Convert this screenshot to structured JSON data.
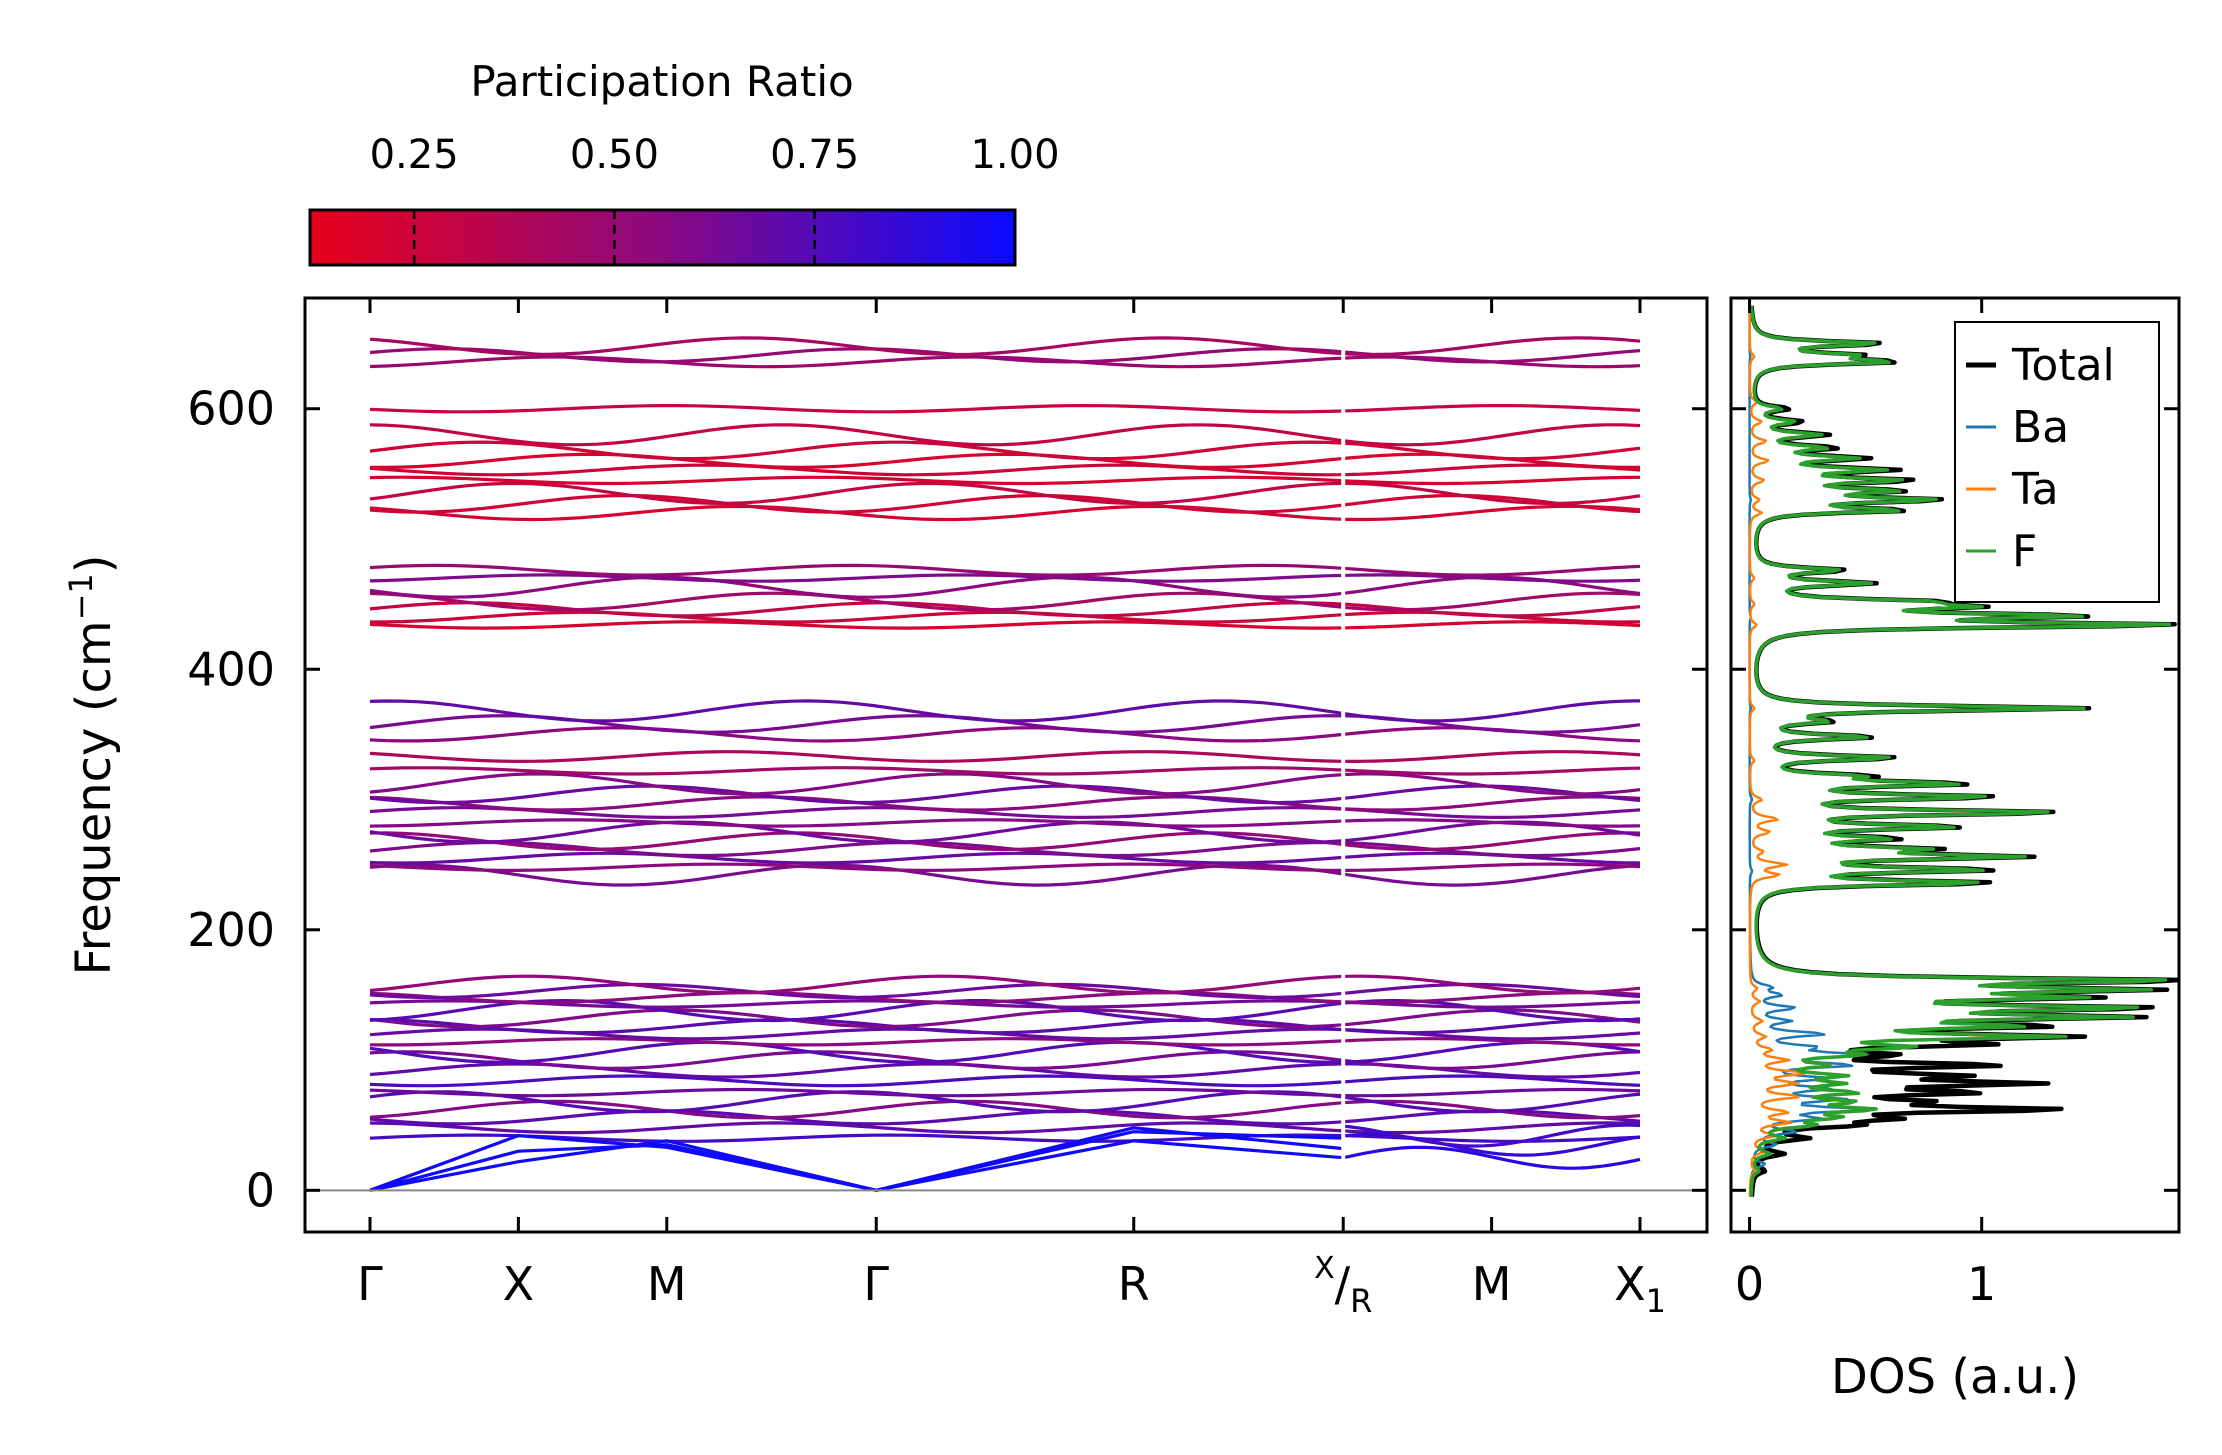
{
  "chart_data": {
    "type": "line",
    "title": "",
    "colorbar": {
      "title": "Participation Ratio",
      "ticks": [
        "0.25",
        "0.50",
        "0.75",
        "1.00"
      ],
      "tick_values": [
        0.25,
        0.5,
        0.75,
        1.0
      ],
      "range": [
        0.12,
        1.0
      ],
      "low_color": "#e8001a",
      "mid_color": "#8a0a80",
      "high_color": "#0a0aff"
    },
    "band_structure": {
      "ylabel_main": "Frequency (cm",
      "ylabel_sup": "−1",
      "ylabel_close": ")",
      "ylim": [
        -32,
        685
      ],
      "yticks": [
        0,
        200,
        400,
        600
      ],
      "ytick_labels": [
        "0",
        "200",
        "400",
        "600"
      ],
      "kpoints": [
        {
          "label": "Γ",
          "sub": "",
          "sup": "",
          "pos": 0.0
        },
        {
          "label": "X",
          "sub": "",
          "sup": "",
          "pos": 0.102
        },
        {
          "label": "M",
          "sub": "",
          "sup": "",
          "pos": 0.204
        },
        {
          "label": "Γ",
          "sub": "",
          "sup": "",
          "pos": 0.348
        },
        {
          "label": "R",
          "sub": "",
          "sup": "",
          "pos": 0.525
        },
        {
          "label": "/",
          "sub": "R",
          "sup": "X",
          "pos": 0.669
        },
        {
          "label": "M",
          "sub": "",
          "sup": "",
          "pos": 0.771
        },
        {
          "label": "X",
          "sub": "1",
          "sup": "",
          "pos": 0.873
        }
      ],
      "path_break_after": 0.669,
      "zero_line": 0,
      "acoustic_branches": [
        {
          "points": [
            [
              0.0,
              0
            ],
            [
              0.102,
              42
            ],
            [
              0.204,
              33
            ],
            [
              0.348,
              0
            ],
            [
              0.525,
              48
            ],
            [
              0.669,
              32
            ]
          ]
        },
        {
          "points": [
            [
              0.0,
              0
            ],
            [
              0.102,
              30
            ],
            [
              0.204,
              35
            ],
            [
              0.348,
              0
            ],
            [
              0.525,
              38
            ],
            [
              0.669,
              25
            ]
          ]
        },
        {
          "points": [
            [
              0.0,
              0
            ],
            [
              0.102,
              22
            ],
            [
              0.204,
              38
            ],
            [
              0.348,
              0
            ],
            [
              0.525,
              45
            ],
            [
              0.669,
              40
            ]
          ]
        }
      ],
      "optical_bands": [
        {
          "y": 40,
          "pr": 0.8
        },
        {
          "y": 48,
          "pr": 0.7
        },
        {
          "y": 56,
          "pr": 0.72
        },
        {
          "y": 62,
          "pr": 0.58
        },
        {
          "y": 68,
          "pr": 0.74
        },
        {
          "y": 75,
          "pr": 0.66
        },
        {
          "y": 84,
          "pr": 0.78
        },
        {
          "y": 92,
          "pr": 0.7
        },
        {
          "y": 100,
          "pr": 0.62
        },
        {
          "y": 106,
          "pr": 0.75
        },
        {
          "y": 114,
          "pr": 0.55
        },
        {
          "y": 120,
          "pr": 0.68
        },
        {
          "y": 126,
          "pr": 0.72
        },
        {
          "y": 132,
          "pr": 0.6
        },
        {
          "y": 138,
          "pr": 0.74
        },
        {
          "y": 143,
          "pr": 0.64
        },
        {
          "y": 148,
          "pr": 0.56
        },
        {
          "y": 153,
          "pr": 0.66
        },
        {
          "y": 158,
          "pr": 0.52
        },
        {
          "y": 242,
          "pr": 0.62
        },
        {
          "y": 248,
          "pr": 0.55
        },
        {
          "y": 255,
          "pr": 0.68
        },
        {
          "y": 262,
          "pr": 0.6
        },
        {
          "y": 268,
          "pr": 0.52
        },
        {
          "y": 275,
          "pr": 0.66
        },
        {
          "y": 282,
          "pr": 0.58
        },
        {
          "y": 290,
          "pr": 0.63
        },
        {
          "y": 297,
          "pr": 0.55
        },
        {
          "y": 304,
          "pr": 0.67
        },
        {
          "y": 312,
          "pr": 0.58
        },
        {
          "y": 322,
          "pr": 0.45
        },
        {
          "y": 333,
          "pr": 0.4
        },
        {
          "y": 350,
          "pr": 0.55
        },
        {
          "y": 358,
          "pr": 0.62
        },
        {
          "y": 368,
          "pr": 0.7
        },
        {
          "y": 434,
          "pr": 0.22
        },
        {
          "y": 440,
          "pr": 0.25
        },
        {
          "y": 446,
          "pr": 0.3
        },
        {
          "y": 452,
          "pr": 0.45
        },
        {
          "y": 463,
          "pr": 0.55
        },
        {
          "y": 470,
          "pr": 0.6
        },
        {
          "y": 476,
          "pr": 0.5
        },
        {
          "y": 520,
          "pr": 0.22
        },
        {
          "y": 527,
          "pr": 0.24
        },
        {
          "y": 535,
          "pr": 0.28
        },
        {
          "y": 545,
          "pr": 0.22
        },
        {
          "y": 553,
          "pr": 0.25
        },
        {
          "y": 560,
          "pr": 0.2
        },
        {
          "y": 568,
          "pr": 0.24
        },
        {
          "y": 580,
          "pr": 0.3
        },
        {
          "y": 600,
          "pr": 0.28
        },
        {
          "y": 636,
          "pr": 0.48
        },
        {
          "y": 641,
          "pr": 0.5
        },
        {
          "y": 648,
          "pr": 0.42
        }
      ]
    },
    "dos": {
      "xlabel": "DOS (a.u.)",
      "xlim": [
        -0.08,
        1.85
      ],
      "xticks": [
        0,
        1
      ],
      "xtick_labels": [
        "0",
        "1"
      ],
      "legend_position": "top-right",
      "series": [
        {
          "name": "Total",
          "color": "#000000",
          "line_width": 4.5,
          "peaks": [
            [
              15,
              0.05
            ],
            [
              28,
              0.12
            ],
            [
              40,
              0.2
            ],
            [
              50,
              0.35
            ],
            [
              55,
              0.45
            ],
            [
              62,
              1.22
            ],
            [
              68,
              0.55
            ],
            [
              75,
              0.8
            ],
            [
              82,
              1.05
            ],
            [
              88,
              0.7
            ],
            [
              96,
              0.95
            ],
            [
              104,
              0.45
            ],
            [
              112,
              0.8
            ],
            [
              118,
              1.18
            ],
            [
              126,
              1.05
            ],
            [
              133,
              1.38
            ],
            [
              140,
              1.5
            ],
            [
              148,
              1.15
            ],
            [
              154,
              1.43
            ],
            [
              161,
              1.76
            ],
            [
              236,
              1.0
            ],
            [
              246,
              0.97
            ],
            [
              256,
              1.06
            ],
            [
              262,
              0.62
            ],
            [
              270,
              0.52
            ],
            [
              279,
              0.82
            ],
            [
              290,
              1.27
            ],
            [
              302,
              0.98
            ],
            [
              312,
              0.85
            ],
            [
              318,
              0.4
            ],
            [
              332,
              0.6
            ],
            [
              348,
              0.5
            ],
            [
              360,
              0.28
            ],
            [
              370,
              1.43
            ],
            [
              434,
              1.75
            ],
            [
              441,
              1.25
            ],
            [
              448,
              0.72
            ],
            [
              452,
              0.6
            ],
            [
              466,
              0.48
            ],
            [
              476,
              0.38
            ],
            [
              522,
              0.62
            ],
            [
              530,
              0.74
            ],
            [
              537,
              0.55
            ],
            [
              545,
              0.62
            ],
            [
              553,
              0.55
            ],
            [
              562,
              0.44
            ],
            [
              570,
              0.32
            ],
            [
              580,
              0.3
            ],
            [
              590,
              0.2
            ],
            [
              600,
              0.15
            ],
            [
              636,
              0.58
            ],
            [
              641,
              0.4
            ],
            [
              650,
              0.55
            ]
          ]
        },
        {
          "name": "Ba",
          "color": "#1f77b4",
          "line_width": 2.5,
          "peaks": [
            [
              20,
              0.06
            ],
            [
              35,
              0.1
            ],
            [
              45,
              0.18
            ],
            [
              55,
              0.25
            ],
            [
              62,
              0.45
            ],
            [
              70,
              0.35
            ],
            [
              78,
              0.3
            ],
            [
              86,
              0.28
            ],
            [
              96,
              0.4
            ],
            [
              104,
              0.45
            ],
            [
              110,
              0.22
            ],
            [
              120,
              0.3
            ],
            [
              130,
              0.15
            ],
            [
              140,
              0.18
            ],
            [
              150,
              0.12
            ],
            [
              156,
              0.08
            ],
            [
              245,
              0.01
            ],
            [
              300,
              0.01
            ],
            [
              370,
              0.005
            ],
            [
              440,
              0.005
            ],
            [
              530,
              0.005
            ],
            [
              640,
              0.003
            ]
          ]
        },
        {
          "name": "Ta",
          "color": "#ff7f0e",
          "line_width": 2.5,
          "peaks": [
            [
              15,
              0.02
            ],
            [
              30,
              0.06
            ],
            [
              42,
              0.1
            ],
            [
              52,
              0.16
            ],
            [
              60,
              0.15
            ],
            [
              72,
              0.2
            ],
            [
              82,
              0.18
            ],
            [
              90,
              0.22
            ],
            [
              100,
              0.15
            ],
            [
              108,
              0.08
            ],
            [
              118,
              0.06
            ],
            [
              130,
              0.05
            ],
            [
              145,
              0.04
            ],
            [
              155,
              0.03
            ],
            [
              242,
              0.12
            ],
            [
              250,
              0.15
            ],
            [
              260,
              0.05
            ],
            [
              275,
              0.08
            ],
            [
              285,
              0.12
            ],
            [
              300,
              0.05
            ],
            [
              330,
              0.02
            ],
            [
              370,
              0.02
            ],
            [
              434,
              0.03
            ],
            [
              450,
              0.02
            ],
            [
              470,
              0.02
            ],
            [
              520,
              0.05
            ],
            [
              530,
              0.04
            ],
            [
              545,
              0.06
            ],
            [
              560,
              0.08
            ],
            [
              575,
              0.07
            ],
            [
              590,
              0.05
            ],
            [
              605,
              0.03
            ],
            [
              640,
              0.02
            ]
          ]
        },
        {
          "name": "F",
          "color": "#2ca02c",
          "line_width": 3.5,
          "peaks": [
            [
              15,
              0.03
            ],
            [
              28,
              0.07
            ],
            [
              40,
              0.12
            ],
            [
              50,
              0.22
            ],
            [
              56,
              0.3
            ],
            [
              62,
              0.45
            ],
            [
              68,
              0.35
            ],
            [
              75,
              0.38
            ],
            [
              82,
              0.3
            ],
            [
              88,
              0.32
            ],
            [
              96,
              0.25
            ],
            [
              104,
              0.35
            ],
            [
              110,
              0.55
            ],
            [
              118,
              1.18
            ],
            [
              126,
              0.95
            ],
            [
              133,
              1.35
            ],
            [
              140,
              1.45
            ],
            [
              148,
              1.1
            ],
            [
              154,
              1.38
            ],
            [
              161,
              1.7
            ],
            [
              236,
              0.95
            ],
            [
              246,
              0.93
            ],
            [
              256,
              1.03
            ],
            [
              262,
              0.58
            ],
            [
              270,
              0.48
            ],
            [
              279,
              0.8
            ],
            [
              290,
              1.25
            ],
            [
              302,
              0.95
            ],
            [
              312,
              0.82
            ],
            [
              318,
              0.36
            ],
            [
              332,
              0.58
            ],
            [
              348,
              0.48
            ],
            [
              360,
              0.26
            ],
            [
              370,
              1.41
            ],
            [
              434,
              1.73
            ],
            [
              441,
              1.23
            ],
            [
              448,
              0.7
            ],
            [
              452,
              0.58
            ],
            [
              466,
              0.46
            ],
            [
              476,
              0.36
            ],
            [
              522,
              0.6
            ],
            [
              530,
              0.72
            ],
            [
              537,
              0.53
            ],
            [
              545,
              0.58
            ],
            [
              553,
              0.5
            ],
            [
              562,
              0.4
            ],
            [
              570,
              0.28
            ],
            [
              580,
              0.27
            ],
            [
              590,
              0.17
            ],
            [
              600,
              0.12
            ],
            [
              636,
              0.56
            ],
            [
              641,
              0.38
            ],
            [
              650,
              0.53
            ]
          ]
        }
      ]
    }
  }
}
